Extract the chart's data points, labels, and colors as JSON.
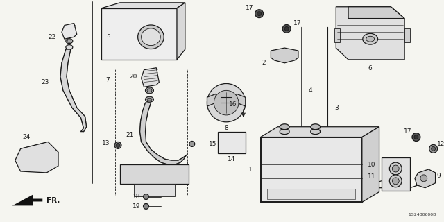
{
  "bg_color": "#f5f5f0",
  "lc": "#1a1a1a",
  "diagram_code": "1G2480600B",
  "figsize": [
    6.4,
    3.2
  ],
  "dpi": 100
}
